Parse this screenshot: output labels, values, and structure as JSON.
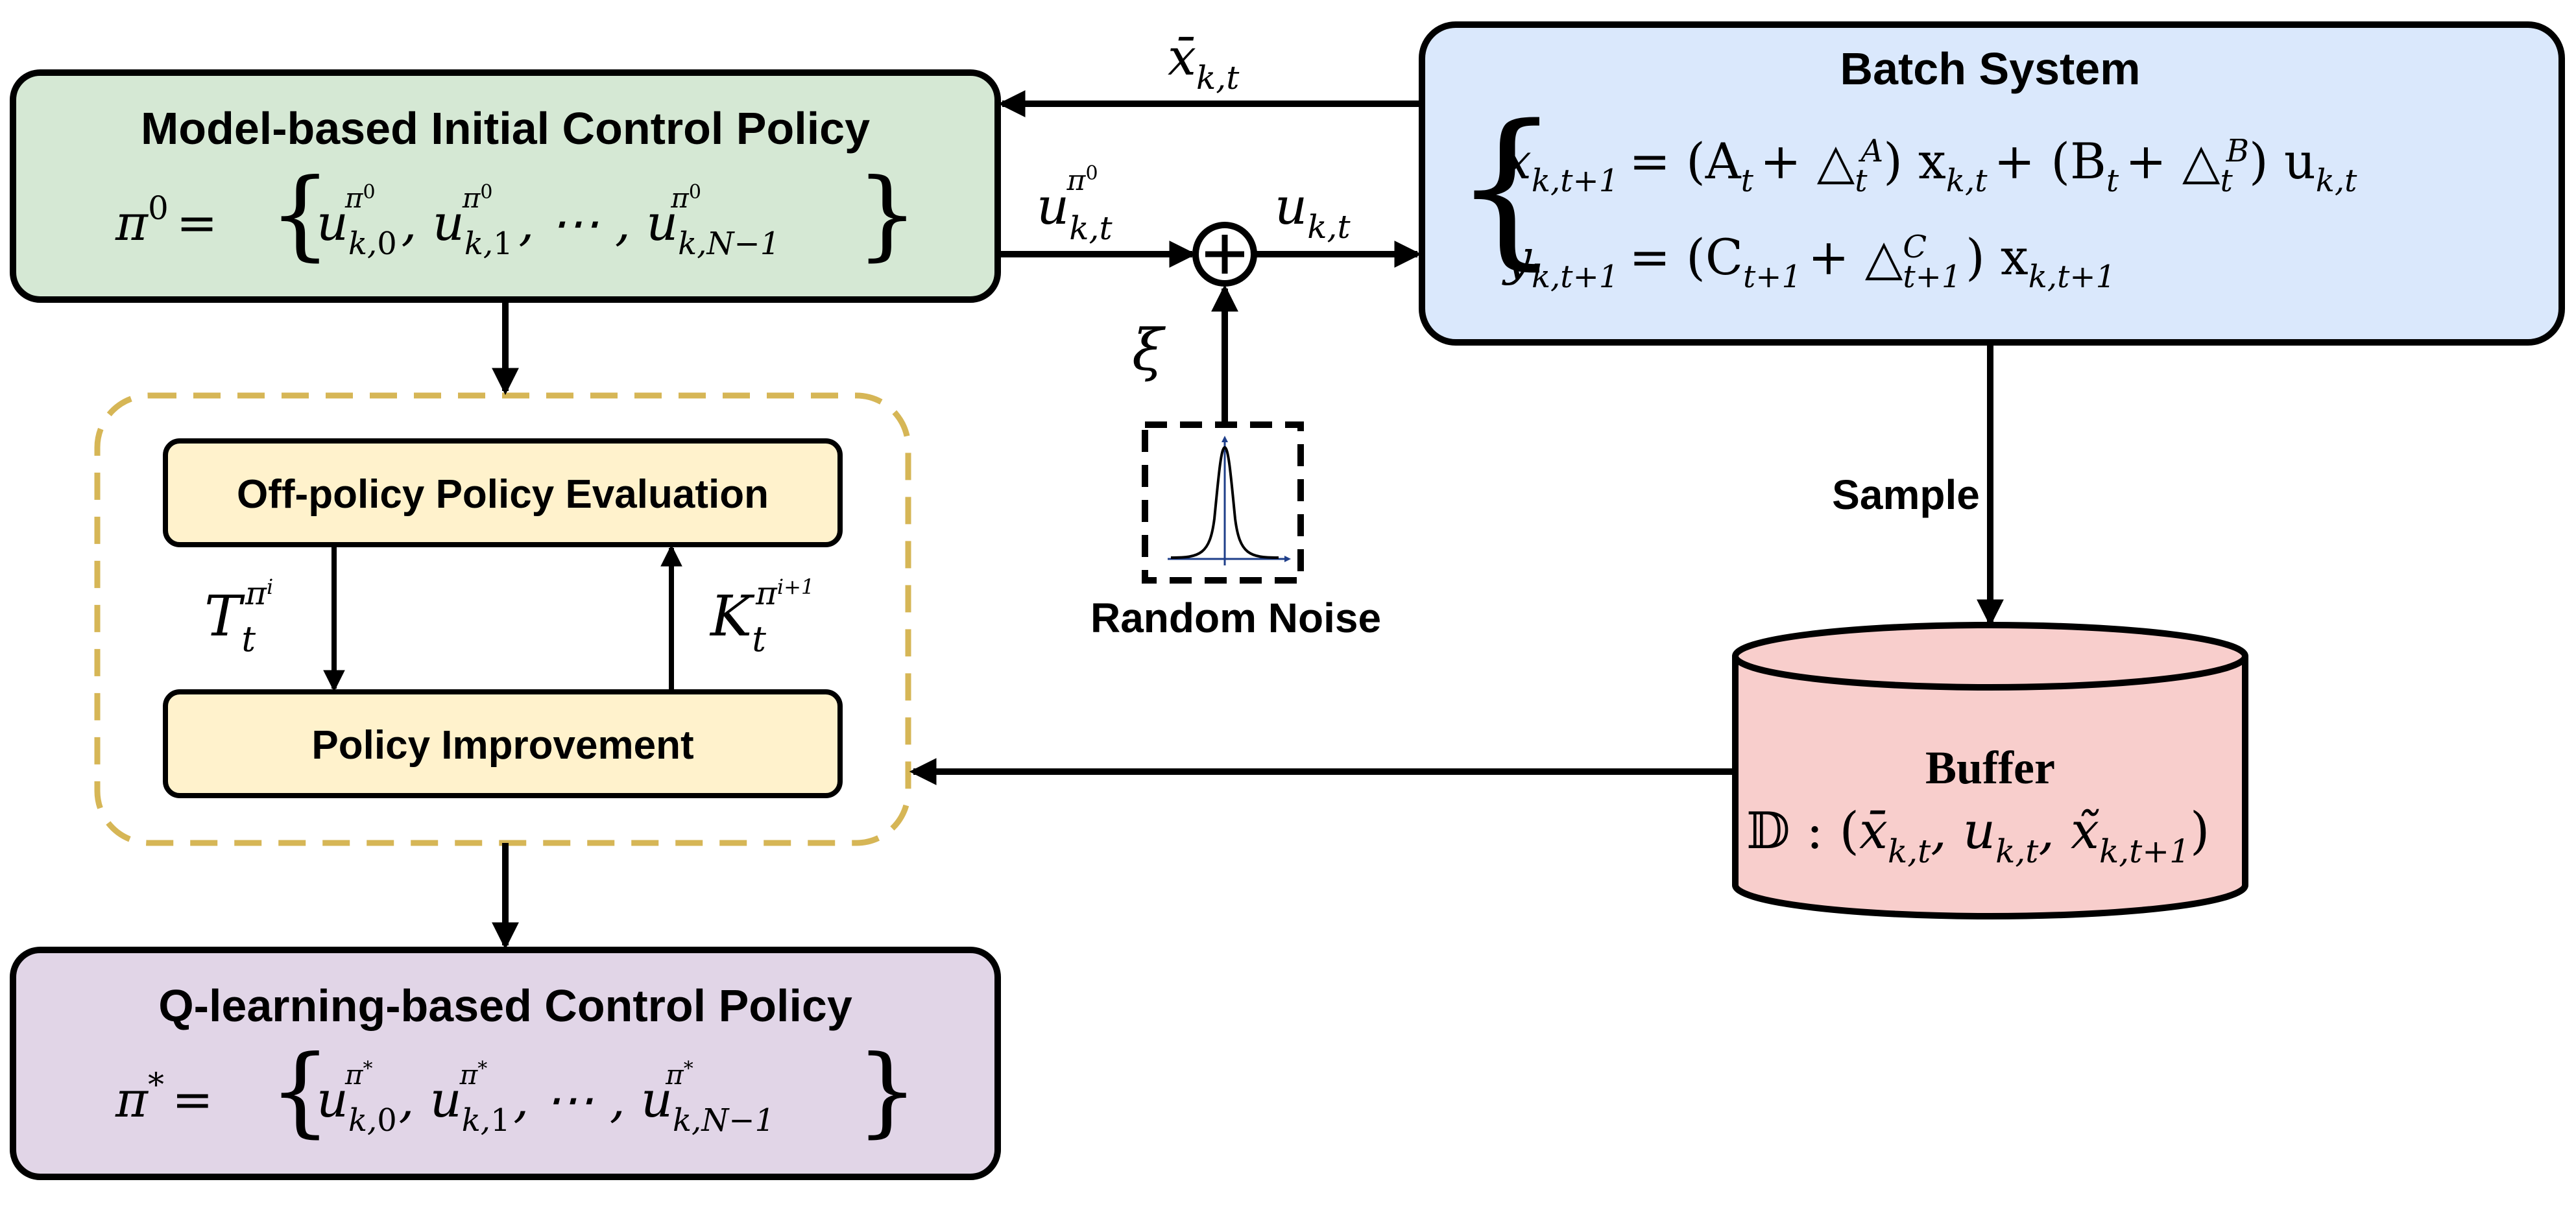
{
  "colors": {
    "green_box": "#d5e8d4",
    "blue_box": "#dae8fc",
    "purple_box": "#e1d5e7",
    "yellow_box": "#fff2cc",
    "red_box": "#f8cecc",
    "dashed_border": "#d6b656",
    "stroke": "#000000"
  },
  "initial_policy": {
    "title": "Model-based Initial Control Policy",
    "formula": "π⁰ = { u_{k,0}^{π⁰}, u_{k,1}^{π⁰}, ⋯, u_{k,N−1}^{π⁰} }"
  },
  "batch_system": {
    "title": "Batch System",
    "equation_1": "x_{k,t+1} = (A_t + △_t^A) x_{k,t} + (B_t + △_t^B) u_{k,t}",
    "equation_2": "y_{k,t+1} = (C_{t+1} + △_{t+1}^C) x_{k,t+1}"
  },
  "rl_loop": {
    "evaluation_label": "Off-policy Policy Evaluation",
    "improvement_label": "Policy Improvement",
    "t_label": "T_t^{π^i}",
    "k_label": "K_t^{π^{i+1}}"
  },
  "q_policy": {
    "title": "Q-learning-based Control Policy",
    "formula": "π* = { u_{k,0}^{π*}, u_{k,1}^{π*}, ⋯, u_{k,N−1}^{π*} }"
  },
  "noise": {
    "label": "Random Noise",
    "symbol": "ξ"
  },
  "buffer": {
    "title": "Buffer",
    "formula": "𝔻 : (x̄_{k,t}, u_{k,t}, x̃_{k,t+1})"
  },
  "signals": {
    "state_feedback": "x̄_{k,t}",
    "policy_input": "u_{k,t}^{π⁰}",
    "control_input": "u_{k,t}",
    "sample_label": "Sample"
  }
}
